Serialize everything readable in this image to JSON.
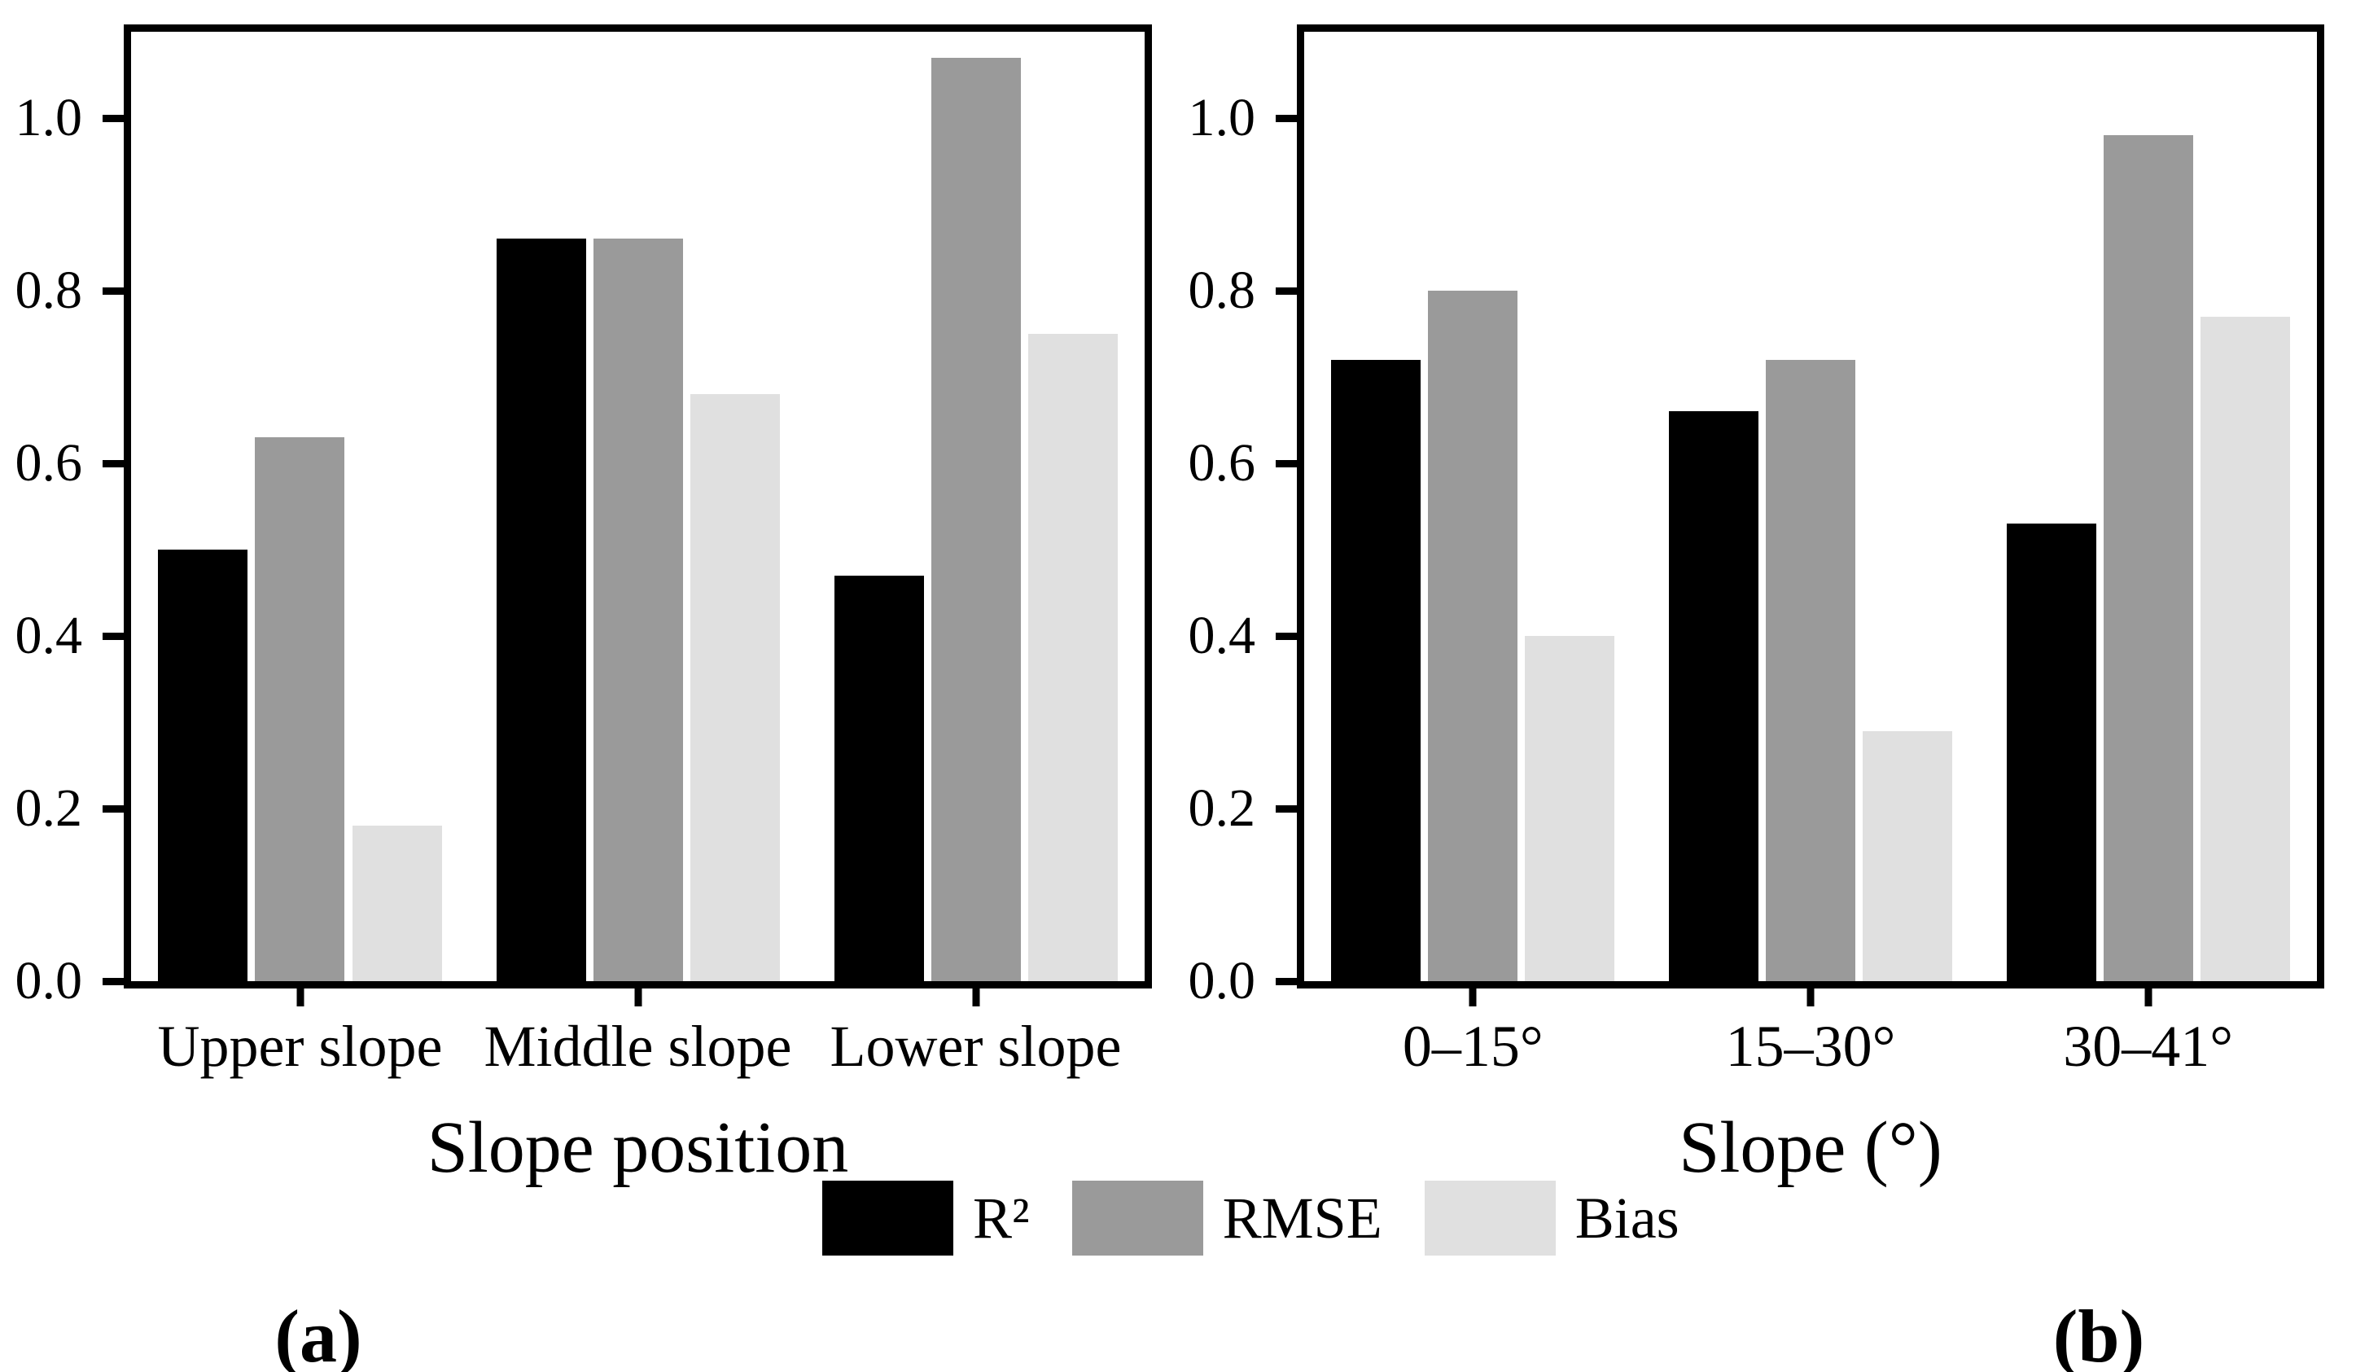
{
  "colors": {
    "r2": "#000000",
    "rmse": "#9a9a9a",
    "bias": "#e0e0e0",
    "axis": "#000000",
    "background": "#ffffff"
  },
  "legend": {
    "position": "bottom-center",
    "items": [
      {
        "label": "R²",
        "series": "r2"
      },
      {
        "label": "RMSE",
        "series": "rmse"
      },
      {
        "label": "Bias",
        "series": "bias"
      }
    ]
  },
  "chart_data": [
    {
      "id": "a",
      "type": "bar",
      "title": "",
      "xlabel": "Slope position",
      "ylabel": "",
      "ylim": [
        0,
        1.1
      ],
      "grid": false,
      "yticks": [
        0.0,
        0.2,
        0.4,
        0.6,
        0.8,
        1.0
      ],
      "ytick_labels": [
        "0.0",
        "0.2",
        "0.4",
        "0.6",
        "0.8",
        "1.0"
      ],
      "categories": [
        "Upper slope",
        "Middle slope",
        "Lower slope"
      ],
      "series": [
        {
          "name": "R²",
          "key": "r2",
          "values": [
            0.5,
            0.86,
            0.47
          ]
        },
        {
          "name": "RMSE",
          "key": "rmse",
          "values": [
            0.63,
            0.86,
            1.07
          ]
        },
        {
          "name": "Bias",
          "key": "bias",
          "values": [
            0.18,
            0.68,
            0.75
          ]
        }
      ],
      "caption": "(a)"
    },
    {
      "id": "b",
      "type": "bar",
      "title": "",
      "xlabel": "Slope (°)",
      "ylabel": "",
      "ylim": [
        0,
        1.1
      ],
      "grid": false,
      "yticks": [
        0.0,
        0.2,
        0.4,
        0.6,
        0.8,
        1.0
      ],
      "ytick_labels": [
        "0.0",
        "0.2",
        "0.4",
        "0.6",
        "0.8",
        "1.0"
      ],
      "categories": [
        "0–15°",
        "15–30°",
        "30–41°"
      ],
      "series": [
        {
          "name": "R²",
          "key": "r2",
          "values": [
            0.72,
            0.66,
            0.53
          ]
        },
        {
          "name": "RMSE",
          "key": "rmse",
          "values": [
            0.8,
            0.72,
            0.98
          ]
        },
        {
          "name": "Bias",
          "key": "bias",
          "values": [
            0.4,
            0.29,
            0.77
          ]
        }
      ],
      "caption": "(b)"
    }
  ]
}
